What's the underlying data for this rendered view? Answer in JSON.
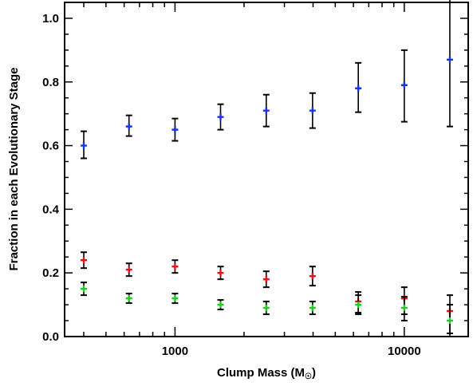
{
  "chart_data": {
    "type": "scatter",
    "title": "",
    "xlabel": "Clump Mass (M",
    "xlabel_sub": "☉",
    "xlabel_close": ")",
    "ylabel": "Fraction in each Evolutionary Stage",
    "xscale": "log",
    "xlim": [
      330,
      19000
    ],
    "ylim": [
      0.0,
      1.05
    ],
    "grid": false,
    "legend": "none",
    "x_tick_labels": [
      {
        "value": 1000,
        "label": "1000"
      },
      {
        "value": 10000,
        "label": "10000"
      }
    ],
    "y_tick_labels": [
      {
        "value": 0.0,
        "label": "0.0"
      },
      {
        "value": 0.2,
        "label": "0.2"
      },
      {
        "value": 0.4,
        "label": "0.4"
      },
      {
        "value": 0.6,
        "label": "0.6"
      },
      {
        "value": 0.8,
        "label": "0.8"
      },
      {
        "value": 1.0,
        "label": "1.0"
      }
    ],
    "x": [
      400,
      630,
      1000,
      1580,
      2500,
      3980,
      6300,
      10000,
      15800
    ],
    "series": [
      {
        "color": "#1a33e6",
        "values": [
          0.6,
          0.66,
          0.65,
          0.69,
          0.71,
          0.71,
          0.78,
          0.79,
          0.87
        ],
        "err_low": [
          0.04,
          0.03,
          0.035,
          0.04,
          0.05,
          0.055,
          0.075,
          0.115,
          0.21
        ],
        "err_high": [
          0.045,
          0.035,
          0.035,
          0.04,
          0.05,
          0.055,
          0.08,
          0.11,
          0.22
        ]
      },
      {
        "color": "#e6141a",
        "values": [
          0.24,
          0.21,
          0.22,
          0.2,
          0.18,
          0.19,
          0.11,
          0.12,
          0.08
        ],
        "err_low": [
          0.025,
          0.02,
          0.02,
          0.02,
          0.025,
          0.03,
          0.035,
          0.05,
          0.07
        ],
        "err_high": [
          0.025,
          0.02,
          0.02,
          0.02,
          0.025,
          0.03,
          0.03,
          0.035,
          0.05
        ]
      },
      {
        "color": "#1fcc1f",
        "values": [
          0.15,
          0.12,
          0.12,
          0.1,
          0.09,
          0.09,
          0.1,
          0.09,
          0.05
        ],
        "err_low": [
          0.02,
          0.015,
          0.015,
          0.015,
          0.02,
          0.02,
          0.03,
          0.04,
          0.05
        ],
        "err_high": [
          0.02,
          0.015,
          0.015,
          0.015,
          0.02,
          0.02,
          0.03,
          0.035,
          0.05
        ]
      }
    ]
  }
}
